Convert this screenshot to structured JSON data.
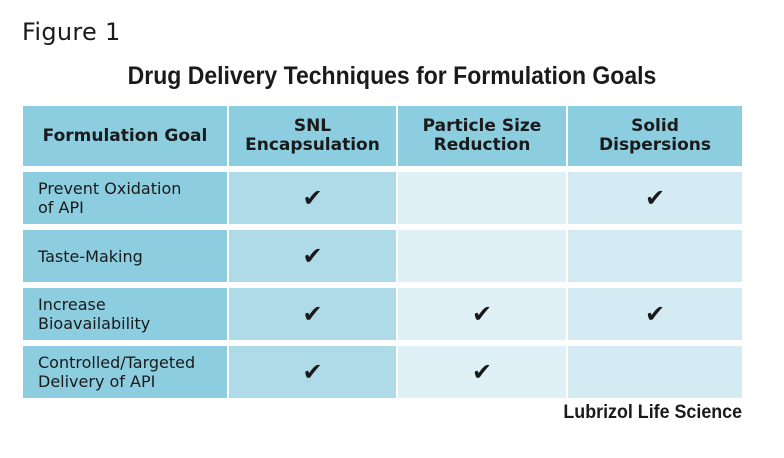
{
  "figure_label": "Figure 1",
  "title": "Drug Delivery Techniques for Formulation Goals",
  "table": {
    "headers": [
      [
        "Formulation Goal"
      ],
      [
        "SNL",
        "Encapsulation"
      ],
      [
        "Particle Size",
        "Reduction"
      ],
      [
        "Solid",
        "Dispersions"
      ]
    ],
    "rows": [
      {
        "goal": [
          "Prevent Oxidation",
          "of API"
        ],
        "marks": [
          "✔",
          "",
          "✔"
        ]
      },
      {
        "goal": [
          "Taste-Making"
        ],
        "marks": [
          "✔",
          "",
          ""
        ]
      },
      {
        "goal": [
          "Increase",
          "Bioavailability"
        ],
        "marks": [
          "✔",
          "✔",
          "✔"
        ]
      },
      {
        "goal": [
          "Controlled/Targeted",
          "Delivery of API"
        ],
        "marks": [
          "✔",
          "✔",
          ""
        ]
      }
    ]
  },
  "credit": "Lubrizol Life Science",
  "colors": {
    "header": "#8ccde0",
    "goal_column": "#8ccde0",
    "snl_column": "#afdbe8",
    "particle_column": "#dff0f6",
    "solid_column": "#d5ebf3"
  }
}
